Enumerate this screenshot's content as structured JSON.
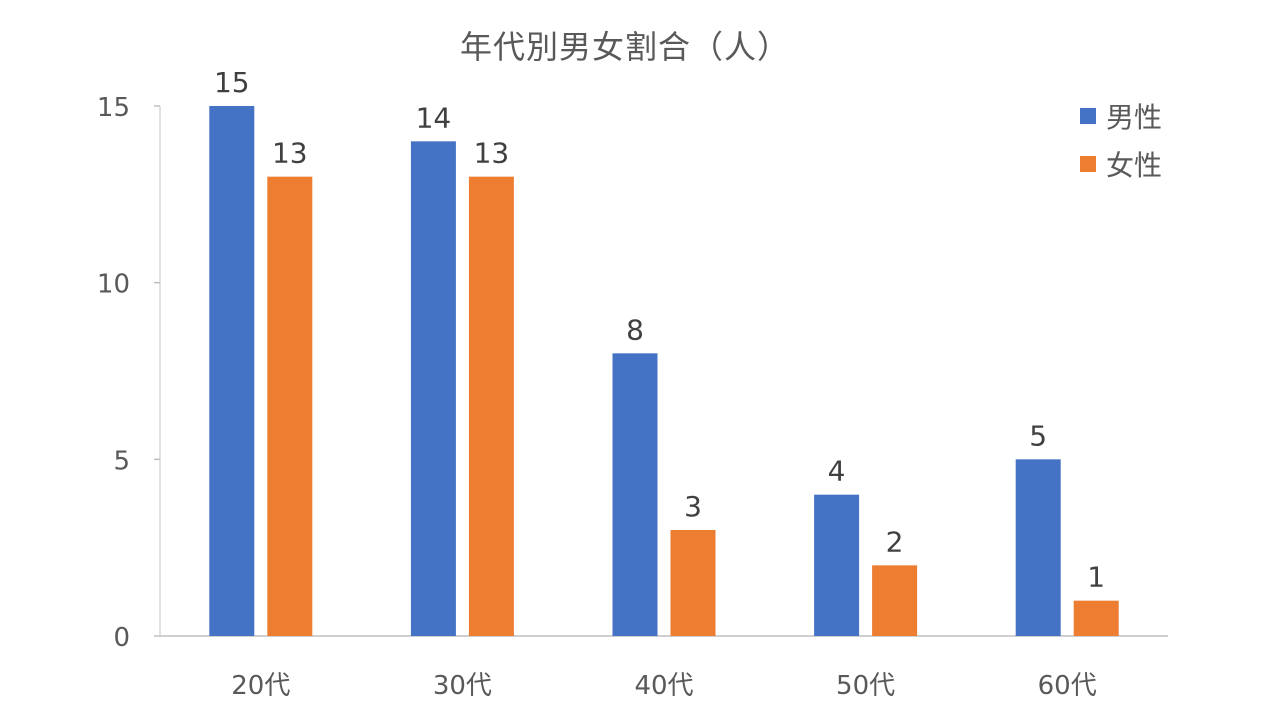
{
  "chart_data": {
    "type": "bar",
    "title": "年代別男女割合（人）",
    "categories": [
      "20代",
      "30代",
      "40代",
      "50代",
      "60代"
    ],
    "series": [
      {
        "name": "男性",
        "values": [
          15,
          14,
          8,
          4,
          5
        ],
        "color": "#4472C4"
      },
      {
        "name": "女性",
        "values": [
          13,
          13,
          3,
          2,
          1
        ],
        "color": "#ED7D31"
      }
    ],
    "yticks": [
      0,
      5,
      10,
      15
    ],
    "ylim": [
      0,
      15
    ],
    "grid": false,
    "legend_position": "top-right",
    "data_labels": true
  }
}
